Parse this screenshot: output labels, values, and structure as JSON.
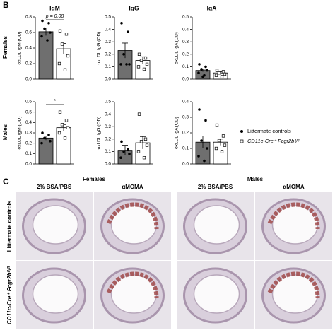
{
  "panel_b": {
    "label": "B",
    "rows": [
      "Females",
      "Males"
    ]
  },
  "legend": [
    "Littermate controls",
    "CD11c-Cre⁺ Fcgr2bᶠˡ/ᶠˡ"
  ],
  "chart_data": [
    {
      "type": "bar",
      "title": "IgM",
      "y_label": "oxLDL IgM (OD)",
      "annotation": "p = 0.08",
      "ylim": [
        0,
        0.8
      ],
      "yticks": [
        {
          "value": 0,
          "label": "0.0"
        },
        {
          "value": 0.2,
          "label": "0.2"
        },
        {
          "value": 0.4,
          "label": "0.4"
        },
        {
          "value": 0.6,
          "label": "0.6"
        },
        {
          "value": 0.8,
          "label": "0.8"
        }
      ],
      "series": [
        {
          "color": "#6f6f6f",
          "marker": "circle",
          "values": [
            0.61
          ],
          "errors": [
            0.05
          ],
          "points": [
            0.75,
            0.72,
            0.65,
            0.6,
            0.55,
            0.5
          ]
        },
        {
          "color": "#ffffff",
          "marker": "square",
          "values": [
            0.39
          ],
          "errors": [
            0.07
          ],
          "points": [
            0.62,
            0.58,
            0.45,
            0.3,
            0.2,
            0.12
          ]
        }
      ]
    },
    {
      "type": "bar",
      "title": "IgG",
      "y_label": "oxLDL IgG (OD)",
      "ylim": [
        0,
        0.5
      ],
      "yticks": [
        {
          "value": 0,
          "label": "0.0"
        },
        {
          "value": 0.1,
          "label": "0.1"
        },
        {
          "value": 0.2,
          "label": "0.2"
        },
        {
          "value": 0.3,
          "label": "0.3"
        },
        {
          "value": 0.4,
          "label": "0.4"
        },
        {
          "value": 0.5,
          "label": "0.5"
        }
      ],
      "series": [
        {
          "color": "#6f6f6f",
          "marker": "circle",
          "values": [
            0.23
          ],
          "errors": [
            0.06
          ],
          "points": [
            0.45,
            0.38,
            0.2,
            0.12,
            0.12,
            0.12
          ]
        },
        {
          "color": "#ffffff",
          "marker": "square",
          "values": [
            0.15
          ],
          "errors": [
            0.03
          ],
          "points": [
            0.2,
            0.17,
            0.15,
            0.12,
            0.1,
            0.08
          ]
        }
      ]
    },
    {
      "type": "bar",
      "title": "IgA",
      "y_label": "oxLDL IgA (OD)",
      "ylim": [
        0,
        0.5
      ],
      "yticks": [
        {
          "value": 0,
          "label": "0.0"
        },
        {
          "value": 0.1,
          "label": "0.1"
        },
        {
          "value": 0.2,
          "label": "0.2"
        },
        {
          "value": 0.3,
          "label": "0.3"
        },
        {
          "value": 0.4,
          "label": "0.4"
        },
        {
          "value": 0.5,
          "label": "0.5"
        }
      ],
      "series": [
        {
          "color": "#6f6f6f",
          "marker": "circle",
          "values": [
            0.07
          ],
          "errors": [
            0.01
          ],
          "points": [
            0.12,
            0.1,
            0.08,
            0.07,
            0.05,
            0.03,
            0.02
          ]
        },
        {
          "color": "#ffffff",
          "marker": "square",
          "values": [
            0.05
          ],
          "errors": [
            0.01
          ],
          "points": [
            0.07,
            0.06,
            0.05,
            0.04,
            0.03,
            0.02
          ]
        }
      ]
    },
    {
      "type": "bar",
      "y_label": "oxLDL IgM (OD)",
      "annotation": "*",
      "ylim": [
        0,
        0.6
      ],
      "yticks": [
        {
          "value": 0,
          "label": "0.0"
        },
        {
          "value": 0.1,
          "label": "0.1"
        },
        {
          "value": 0.2,
          "label": "0.2"
        },
        {
          "value": 0.3,
          "label": "0.3"
        },
        {
          "value": 0.4,
          "label": "0.4"
        },
        {
          "value": 0.5,
          "label": "0.5"
        },
        {
          "value": 0.6,
          "label": "0.6"
        }
      ],
      "series": [
        {
          "color": "#6f6f6f",
          "marker": "circle",
          "values": [
            0.25
          ],
          "errors": [
            0.02
          ],
          "points": [
            0.3,
            0.28,
            0.25,
            0.22,
            0.2
          ]
        },
        {
          "color": "#ffffff",
          "marker": "square",
          "values": [
            0.35
          ],
          "errors": [
            0.03
          ],
          "points": [
            0.5,
            0.42,
            0.38,
            0.35,
            0.3,
            0.25
          ]
        }
      ]
    },
    {
      "type": "bar",
      "y_label": "oxLDL IgG (OD)",
      "ylim": [
        0,
        0.5
      ],
      "yticks": [
        {
          "value": 0,
          "label": "0.0"
        },
        {
          "value": 0.1,
          "label": "0.1"
        },
        {
          "value": 0.2,
          "label": "0.2"
        },
        {
          "value": 0.3,
          "label": "0.3"
        },
        {
          "value": 0.4,
          "label": "0.4"
        },
        {
          "value": 0.5,
          "label": "0.5"
        }
      ],
      "series": [
        {
          "color": "#6f6f6f",
          "marker": "circle",
          "values": [
            0.11
          ],
          "errors": [
            0.04
          ],
          "points": [
            0.18,
            0.12,
            0.1,
            0.08,
            0.05
          ]
        },
        {
          "color": "#ffffff",
          "marker": "square",
          "values": [
            0.17
          ],
          "errors": [
            0.05
          ],
          "points": [
            0.4,
            0.2,
            0.18,
            0.15,
            0.1,
            0.05
          ]
        }
      ]
    },
    {
      "type": "bar",
      "y_label": "oxLDL IgA (OD)",
      "ylim": [
        0,
        0.4
      ],
      "yticks": [
        {
          "value": 0,
          "label": "0.0"
        },
        {
          "value": 0.1,
          "label": "0.1"
        },
        {
          "value": 0.2,
          "label": "0.2"
        },
        {
          "value": 0.3,
          "label": "0.3"
        },
        {
          "value": 0.4,
          "label": "0.4"
        }
      ],
      "series": [
        {
          "color": "#6f6f6f",
          "marker": "circle",
          "values": [
            0.14
          ],
          "errors": [
            0.04
          ],
          "points": [
            0.35,
            0.28,
            0.15,
            0.1,
            0.05,
            0.02
          ]
        },
        {
          "color": "#ffffff",
          "marker": "square",
          "values": [
            0.14
          ],
          "errors": [
            0.02
          ],
          "points": [
            0.25,
            0.18,
            0.15,
            0.12,
            0.1,
            0.08
          ]
        }
      ]
    }
  ],
  "panel_c": {
    "label": "C",
    "groups": [
      "Females",
      "Males"
    ],
    "columns": [
      "2% BSA/PBS",
      "αMOMA",
      "2% BSA/PBS",
      "αMOMA"
    ],
    "rows": [
      "Littermate controls",
      "CD11c-Cre⁺ Fcgr2bᶠˡ/ᶠˡ"
    ]
  }
}
